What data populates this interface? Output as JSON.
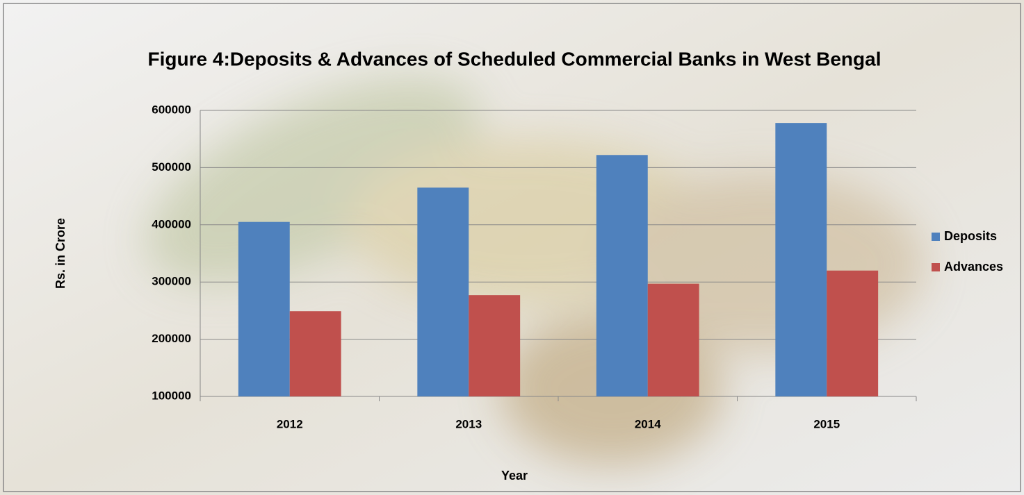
{
  "chart_data": {
    "type": "bar",
    "title": "Figure 4:Deposits & Advances of Scheduled Commercial Banks in West Bengal",
    "x_label": "Year",
    "y_label": "Rs. in Crore",
    "categories": [
      "2012",
      "2013",
      "2014",
      "2015"
    ],
    "series": [
      {
        "name": "Deposits",
        "color": "#4f81bd",
        "values": [
          405000,
          465000,
          522000,
          578000
        ]
      },
      {
        "name": "Advances",
        "color": "#c0504d",
        "values": [
          249000,
          277000,
          297000,
          320000
        ]
      }
    ],
    "ylim": [
      100000,
      600000
    ],
    "yticks": [
      100000,
      200000,
      300000,
      400000,
      500000,
      600000
    ],
    "grid": true,
    "legend": "right"
  }
}
